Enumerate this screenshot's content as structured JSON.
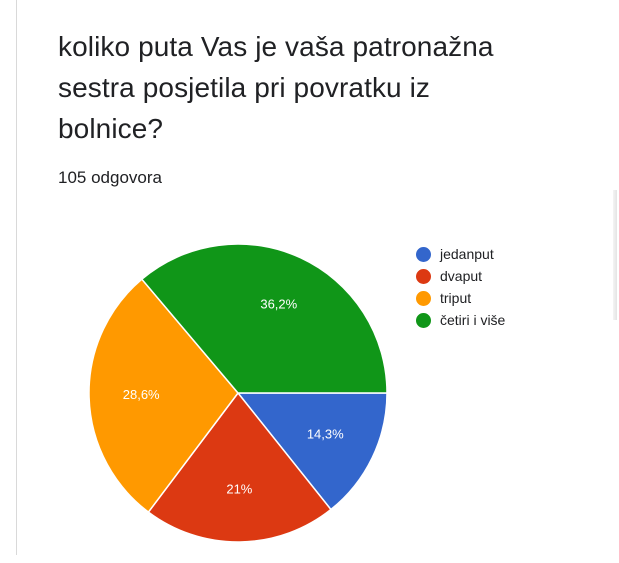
{
  "question": {
    "title": "koliko puta Vas je vaša patronažna sestra posjetila pri povratku iz bolnice?",
    "response_count": "105 odgovora"
  },
  "chart_data": {
    "type": "pie",
    "title": "koliko puta Vas je vaša patronažna sestra posjetila pri povratku iz bolnice?",
    "total_responses": 105,
    "slices": [
      {
        "label": "jedanput",
        "value": 14.3,
        "value_label": "14,3%",
        "color": "#3366cc"
      },
      {
        "label": "dvaput",
        "value": 21.0,
        "value_label": "21%",
        "color": "#dc3912"
      },
      {
        "label": "triput",
        "value": 28.6,
        "value_label": "28,6%",
        "color": "#ff9900"
      },
      {
        "label": "četiri i više",
        "value": 36.2,
        "value_label": "36,2%",
        "color": "#109618"
      }
    ],
    "legend_position": "right",
    "start_angle": "3 o'clock",
    "direction": "clockwise"
  }
}
